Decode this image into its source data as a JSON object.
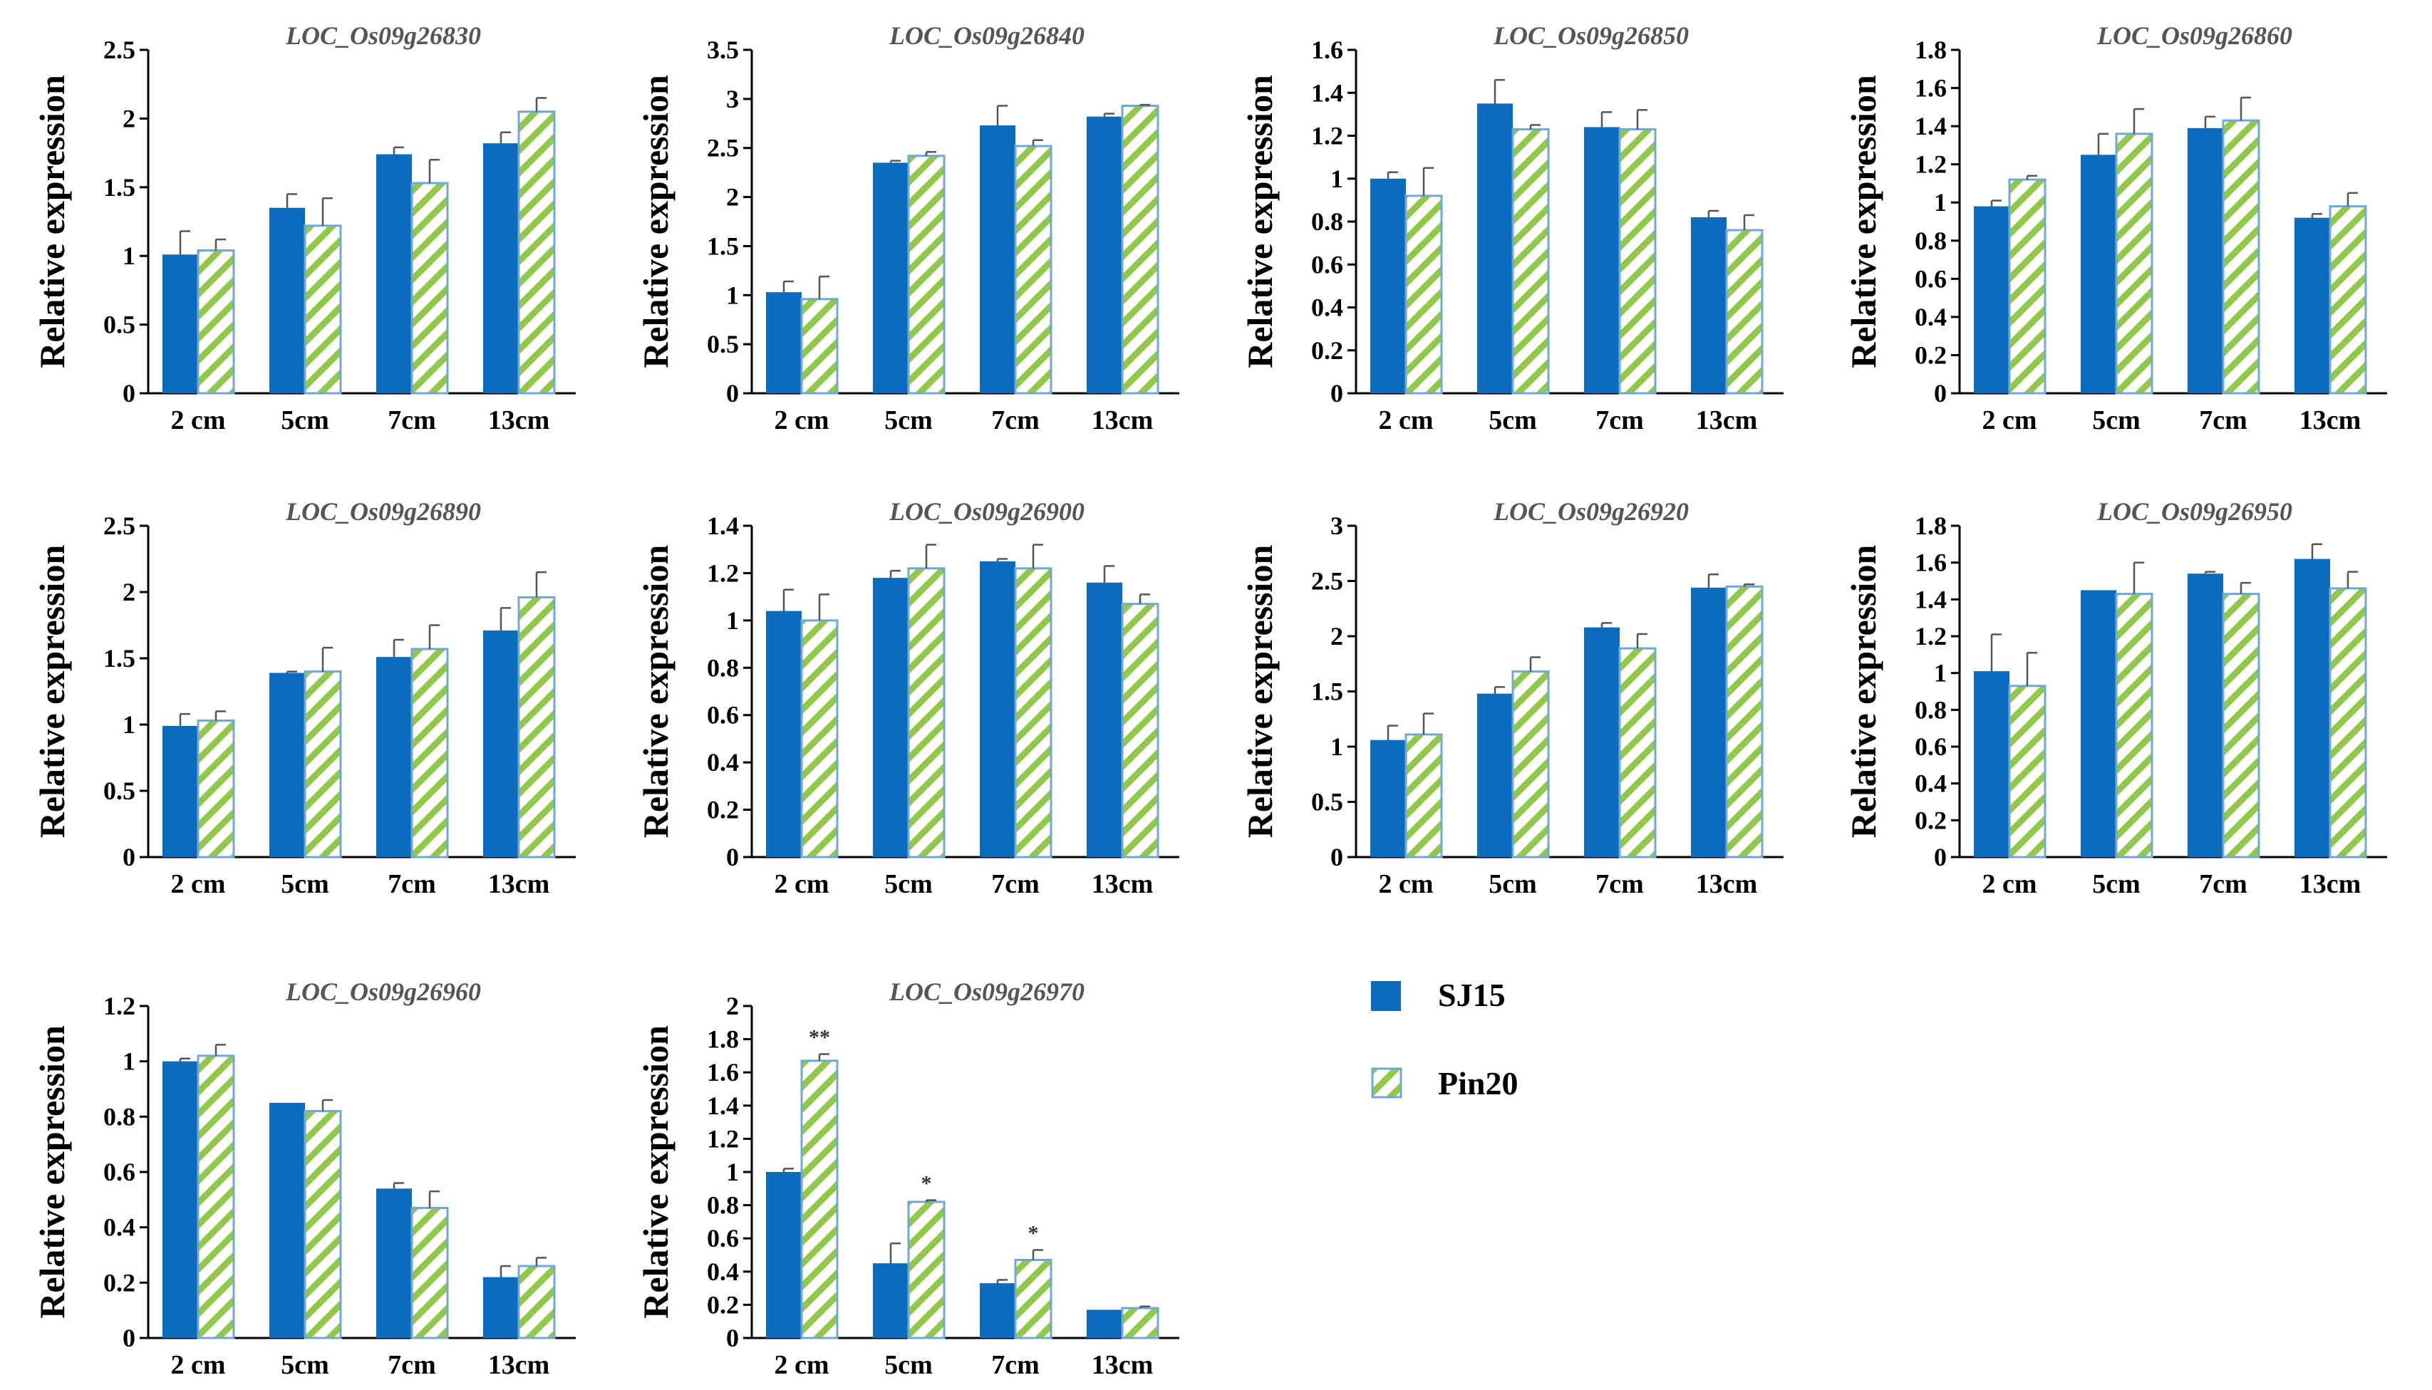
{
  "figure": {
    "ylabel": "Relative expression",
    "categories": [
      "2 cm",
      "5cm",
      "7cm",
      "13cm"
    ],
    "colors": {
      "sj15": "#0b6bbf",
      "pin20_stripe": "#92c84a",
      "pin20_border": "#6fa8d8",
      "axis": "#000000",
      "title": "#555555"
    }
  },
  "legend": {
    "items": [
      {
        "label": "SJ15",
        "style": "solid"
      },
      {
        "label": "Pin20",
        "style": "hatched"
      }
    ]
  },
  "chart_data": [
    {
      "type": "bar",
      "title": "LOC_Os09g26830",
      "xlabel": "",
      "ylabel": "Relative expression",
      "categories": [
        "2 cm",
        "5cm",
        "7cm",
        "13cm"
      ],
      "ylim": [
        0,
        2.5
      ],
      "yticks": [
        "0",
        "0.5",
        "1",
        "1.5",
        "2",
        "2.5"
      ],
      "series": [
        {
          "name": "SJ15",
          "values": [
            1.01,
            1.35,
            1.74,
            1.82
          ],
          "errors": [
            0.17,
            0.1,
            0.05,
            0.08
          ],
          "marks": [
            "",
            "",
            "",
            ""
          ]
        },
        {
          "name": "Pin20",
          "values": [
            1.04,
            1.22,
            1.53,
            2.05
          ],
          "errors": [
            0.08,
            0.2,
            0.17,
            0.1
          ],
          "marks": [
            "",
            "",
            "",
            ""
          ]
        }
      ]
    },
    {
      "type": "bar",
      "title": "LOC_Os09g26840",
      "xlabel": "",
      "ylabel": "Relative expression",
      "categories": [
        "2 cm",
        "5cm",
        "7cm",
        "13cm"
      ],
      "ylim": [
        0,
        3.5
      ],
      "yticks": [
        "0",
        "0.5",
        "1",
        "1.5",
        "2",
        "2.5",
        "3",
        "3.5"
      ],
      "series": [
        {
          "name": "SJ15",
          "values": [
            1.03,
            2.35,
            2.73,
            2.82
          ],
          "errors": [
            0.11,
            0.02,
            0.2,
            0.03
          ],
          "marks": [
            "",
            "",
            "",
            ""
          ]
        },
        {
          "name": "Pin20",
          "values": [
            0.96,
            2.42,
            2.52,
            2.93
          ],
          "errors": [
            0.23,
            0.04,
            0.06,
            0.01
          ],
          "marks": [
            "",
            "",
            "",
            ""
          ]
        }
      ]
    },
    {
      "type": "bar",
      "title": "LOC_Os09g26850",
      "xlabel": "",
      "ylabel": "Relative expression",
      "categories": [
        "2 cm",
        "5cm",
        "7cm",
        "13cm"
      ],
      "ylim": [
        0,
        1.6
      ],
      "yticks": [
        "0",
        "0.2",
        "0.4",
        "0.6",
        "0.8",
        "1",
        "1.2",
        "1.4",
        "1.6"
      ],
      "series": [
        {
          "name": "SJ15",
          "values": [
            1.0,
            1.35,
            1.24,
            0.82
          ],
          "errors": [
            0.03,
            0.11,
            0.07,
            0.03
          ],
          "marks": [
            "",
            "",
            "",
            ""
          ]
        },
        {
          "name": "Pin20",
          "values": [
            0.92,
            1.23,
            1.23,
            0.76
          ],
          "errors": [
            0.13,
            0.02,
            0.09,
            0.07
          ],
          "marks": [
            "",
            "",
            "",
            ""
          ]
        }
      ]
    },
    {
      "type": "bar",
      "title": "LOC_Os09g26860",
      "xlabel": "",
      "ylabel": "Relative expression",
      "categories": [
        "2 cm",
        "5cm",
        "7cm",
        "13cm"
      ],
      "ylim": [
        0,
        1.8
      ],
      "yticks": [
        "0",
        "0.2",
        "0.4",
        "0.6",
        "0.8",
        "1",
        "1.2",
        "1.4",
        "1.6",
        "1.8"
      ],
      "series": [
        {
          "name": "SJ15",
          "values": [
            0.98,
            1.25,
            1.39,
            0.92
          ],
          "errors": [
            0.03,
            0.11,
            0.06,
            0.02
          ],
          "marks": [
            "",
            "",
            "",
            ""
          ]
        },
        {
          "name": "Pin20",
          "values": [
            1.12,
            1.36,
            1.43,
            0.98
          ],
          "errors": [
            0.02,
            0.13,
            0.12,
            0.07
          ],
          "marks": [
            "",
            "",
            "",
            ""
          ]
        }
      ]
    },
    {
      "type": "bar",
      "title": "LOC_Os09g26890",
      "xlabel": "",
      "ylabel": "Relative expression",
      "categories": [
        "2 cm",
        "5cm",
        "7cm",
        "13cm"
      ],
      "ylim": [
        0,
        2.5
      ],
      "yticks": [
        "0",
        "0.5",
        "1",
        "1.5",
        "2",
        "2.5"
      ],
      "series": [
        {
          "name": "SJ15",
          "values": [
            0.99,
            1.39,
            1.51,
            1.71
          ],
          "errors": [
            0.09,
            0.01,
            0.13,
            0.17
          ],
          "marks": [
            "",
            "",
            "",
            ""
          ]
        },
        {
          "name": "Pin20",
          "values": [
            1.03,
            1.4,
            1.57,
            1.96
          ],
          "errors": [
            0.07,
            0.18,
            0.18,
            0.19
          ],
          "marks": [
            "",
            "",
            "",
            ""
          ]
        }
      ]
    },
    {
      "type": "bar",
      "title": "LOC_Os09g26900",
      "xlabel": "",
      "ylabel": "Relative expression",
      "categories": [
        "2 cm",
        "5cm",
        "7cm",
        "13cm"
      ],
      "ylim": [
        0,
        1.4
      ],
      "yticks": [
        "0",
        "0.2",
        "0.4",
        "0.6",
        "0.8",
        "1",
        "1.2",
        "1.4"
      ],
      "series": [
        {
          "name": "SJ15",
          "values": [
            1.04,
            1.18,
            1.25,
            1.16
          ],
          "errors": [
            0.09,
            0.03,
            0.01,
            0.07
          ],
          "marks": [
            "",
            "",
            "",
            ""
          ]
        },
        {
          "name": "Pin20",
          "values": [
            1.0,
            1.22,
            1.22,
            1.07
          ],
          "errors": [
            0.11,
            0.1,
            0.1,
            0.04
          ],
          "marks": [
            "",
            "",
            "",
            ""
          ]
        }
      ]
    },
    {
      "type": "bar",
      "title": "LOC_Os09g26920",
      "xlabel": "",
      "ylabel": "Relative expression",
      "categories": [
        "2 cm",
        "5cm",
        "7cm",
        "13cm"
      ],
      "ylim": [
        0,
        3
      ],
      "yticks": [
        "0",
        "0.5",
        "1",
        "1.5",
        "2",
        "2.5",
        "3"
      ],
      "series": [
        {
          "name": "SJ15",
          "values": [
            1.06,
            1.48,
            2.08,
            2.44
          ],
          "errors": [
            0.13,
            0.06,
            0.04,
            0.12
          ],
          "marks": [
            "",
            "",
            "",
            ""
          ]
        },
        {
          "name": "Pin20",
          "values": [
            1.11,
            1.68,
            1.89,
            2.45
          ],
          "errors": [
            0.19,
            0.13,
            0.13,
            0.02
          ],
          "marks": [
            "",
            "",
            "",
            ""
          ]
        }
      ]
    },
    {
      "type": "bar",
      "title": "LOC_Os09g26950",
      "xlabel": "",
      "ylabel": "Relative expression",
      "categories": [
        "2 cm",
        "5cm",
        "7cm",
        "13cm"
      ],
      "ylim": [
        0,
        1.8
      ],
      "yticks": [
        "0",
        "0.2",
        "0.4",
        "0.6",
        "0.8",
        "1",
        "1.2",
        "1.4",
        "1.6",
        "1.8"
      ],
      "series": [
        {
          "name": "SJ15",
          "values": [
            1.01,
            1.45,
            1.54,
            1.62
          ],
          "errors": [
            0.2,
            0.0,
            0.01,
            0.08
          ],
          "marks": [
            "",
            "",
            "",
            ""
          ]
        },
        {
          "name": "Pin20",
          "values": [
            0.93,
            1.43,
            1.43,
            1.46
          ],
          "errors": [
            0.18,
            0.17,
            0.06,
            0.09
          ],
          "marks": [
            "",
            "",
            "",
            ""
          ]
        }
      ]
    },
    {
      "type": "bar",
      "title": "LOC_Os09g26960",
      "xlabel": "",
      "ylabel": "Relative expression",
      "categories": [
        "2 cm",
        "5cm",
        "7cm",
        "13cm"
      ],
      "ylim": [
        0,
        1.2
      ],
      "yticks": [
        "0",
        "0.2",
        "0.4",
        "0.6",
        "0.8",
        "1",
        "1.2"
      ],
      "series": [
        {
          "name": "SJ15",
          "values": [
            1.0,
            0.85,
            0.54,
            0.22
          ],
          "errors": [
            0.01,
            0.0,
            0.02,
            0.04
          ],
          "marks": [
            "",
            "",
            "",
            ""
          ]
        },
        {
          "name": "Pin20",
          "values": [
            1.02,
            0.82,
            0.47,
            0.26
          ],
          "errors": [
            0.04,
            0.04,
            0.06,
            0.03
          ],
          "marks": [
            "",
            "",
            "",
            ""
          ]
        }
      ]
    },
    {
      "type": "bar",
      "title": "LOC_Os09g26970",
      "xlabel": "",
      "ylabel": "Relative expression",
      "categories": [
        "2 cm",
        "5cm",
        "7cm",
        "13cm"
      ],
      "ylim": [
        0,
        2
      ],
      "yticks": [
        "0",
        "0.2",
        "0.4",
        "0.6",
        "0.8",
        "1",
        "1.2",
        "1.4",
        "1.6",
        "1.8",
        "2"
      ],
      "series": [
        {
          "name": "SJ15",
          "values": [
            1.0,
            0.45,
            0.33,
            0.17
          ],
          "errors": [
            0.02,
            0.12,
            0.02,
            0.0
          ],
          "marks": [
            "",
            "",
            "",
            ""
          ]
        },
        {
          "name": "Pin20",
          "values": [
            1.67,
            0.82,
            0.47,
            0.18
          ],
          "errors": [
            0.04,
            0.01,
            0.06,
            0.01
          ],
          "marks": [
            "**",
            "*",
            "*",
            ""
          ]
        }
      ]
    }
  ]
}
